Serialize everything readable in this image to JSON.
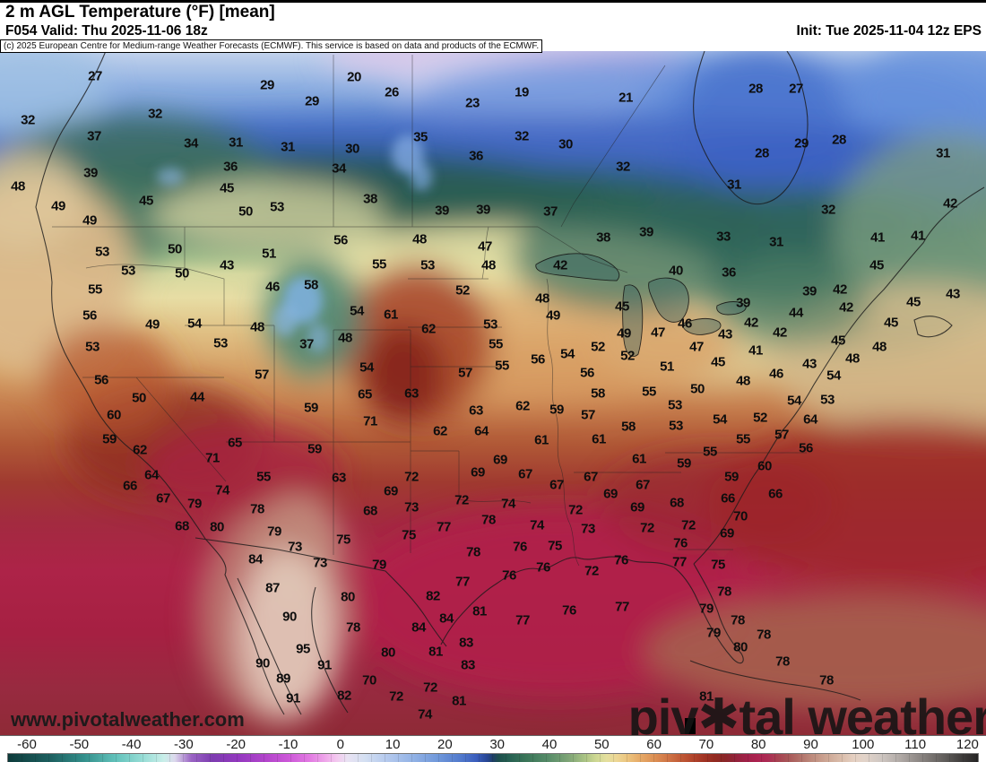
{
  "header": {
    "title": "2 m AGL Temperature (°F) [mean]",
    "valid": "F054 Valid: Thu 2025-11-06 18z",
    "init": "Init: Tue 2025-11-04 12z EPS",
    "copyright": "(c) 2025 European Centre for Medium-range Weather Forecasts (ECMWF). This service is based on data and products of the ECMWF."
  },
  "watermarks": {
    "site": "www.pivotalweather.com",
    "brand_left": "piv",
    "brand_gear": "✱",
    "brand_right": "tal weather"
  },
  "colorbar": {
    "ticks": [
      "-60",
      "-50",
      "-40",
      "-30",
      "-20",
      "-10",
      "0",
      "10",
      "20",
      "30",
      "40",
      "50",
      "60",
      "70",
      "80",
      "90",
      "100",
      "110",
      "120"
    ],
    "gradient": [
      "#0d3b3b 0%",
      "#1d6060 4.4%",
      "#338f8b 7.8%",
      "#62c2bb 11.1%",
      "#97ddd6 13.9%",
      "#c9eee9 16.1%",
      "#dcd8ec 17.2%",
      "#9a64c4 18.9%",
      "#7d3cb0 21.1%",
      "#9539c0 23.9%",
      "#b446cc 26.7%",
      "#cc58d8 28.9%",
      "#e27ae2 31.1%",
      "#efa9ea 32.8%",
      "#f3c9ef 33.9%",
      "#e9e2f3 35%",
      "#d5e0f2 36.7%",
      "#b7cbee 38.9%",
      "#93b3e6 41.7%",
      "#6f97da 44.4%",
      "#5179cc 46.7%",
      "#3a5dbc 48.3%",
      "#274694 49.4%",
      "#1f3f66 50%",
      "#1d4f4c 50.6%",
      "#266052 51.7%",
      "#397458 53.3%",
      "#558b68 55.6%",
      "#7fa577 57.8%",
      "#a8c284 59.4%",
      "#cdd792 60.6%",
      "#e4df9e 61.7%",
      "#edd694 62.8%",
      "#ecc47e 63.9%",
      "#e7ad6a 65%",
      "#dc8f54 66.7%",
      "#cd7044 68.3%",
      "#c05a36 69.4%",
      "#b2452c 70.6%",
      "#a23424 71.7%",
      "#932a20 72.8%",
      "#8a2728 73.9%",
      "#92233a 75%",
      "#a02148 76.1%",
      "#ac2250 77.2%",
      "#ac2c54 78.3%",
      "#a74352 79.4%",
      "#a95a5a 80.6%",
      "#b2726a 81.7%",
      "#bd8a7c 82.8%",
      "#cda694 84.4%",
      "#dcc0ae 86.1%",
      "#e5d0c2 87.2%",
      "#e2d3c9 88.3%",
      "#cfc7c2 90%",
      "#b5aeaa 91.7%",
      "#98928f 93.3%",
      "#7b7673 95%",
      "#5e5b59 96.7%",
      "#403e3d 98.3%",
      "#262525 100%"
    ]
  },
  "map": {
    "labels": [
      [
        27,
        106,
        82
      ],
      [
        29,
        298,
        92
      ],
      [
        29,
        348,
        110
      ],
      [
        32,
        31,
        131
      ],
      [
        32,
        173,
        124
      ],
      [
        37,
        105,
        149
      ],
      [
        34,
        213,
        157
      ],
      [
        31,
        263,
        156
      ],
      [
        31,
        321,
        161
      ],
      [
        36,
        257,
        183
      ],
      [
        39,
        101,
        190
      ],
      [
        45,
        253,
        207
      ],
      [
        48,
        20,
        205
      ],
      [
        49,
        65,
        227
      ],
      [
        45,
        163,
        221
      ],
      [
        53,
        309,
        228
      ],
      [
        50,
        274,
        233
      ],
      [
        49,
        100,
        243
      ],
      [
        20,
        395,
        83
      ],
      [
        26,
        437,
        100
      ],
      [
        23,
        527,
        112
      ],
      [
        19,
        582,
        100
      ],
      [
        21,
        698,
        106
      ],
      [
        35,
        469,
        150
      ],
      [
        32,
        582,
        149
      ],
      [
        30,
        393,
        163
      ],
      [
        30,
        631,
        158
      ],
      [
        36,
        531,
        171
      ],
      [
        32,
        695,
        183
      ],
      [
        34,
        378,
        185
      ],
      [
        38,
        413,
        219
      ],
      [
        39,
        493,
        232
      ],
      [
        39,
        539,
        231
      ],
      [
        37,
        614,
        233
      ],
      [
        39,
        721,
        256
      ],
      [
        28,
        843,
        96
      ],
      [
        27,
        888,
        96
      ],
      [
        28,
        936,
        153
      ],
      [
        29,
        894,
        157
      ],
      [
        28,
        850,
        168
      ],
      [
        31,
        1052,
        168
      ],
      [
        31,
        819,
        203
      ],
      [
        32,
        924,
        231
      ],
      [
        42,
        1060,
        224
      ],
      [
        53,
        114,
        278
      ],
      [
        50,
        195,
        275
      ],
      [
        43,
        253,
        293
      ],
      [
        51,
        300,
        280
      ],
      [
        53,
        143,
        299
      ],
      [
        50,
        203,
        302
      ],
      [
        55,
        106,
        320
      ],
      [
        46,
        304,
        317
      ],
      [
        58,
        347,
        315
      ],
      [
        56,
        100,
        349
      ],
      [
        49,
        170,
        359
      ],
      [
        54,
        217,
        358
      ],
      [
        48,
        287,
        362
      ],
      [
        53,
        246,
        380
      ],
      [
        37,
        342,
        381
      ],
      [
        53,
        103,
        384
      ],
      [
        56,
        113,
        421
      ],
      [
        57,
        292,
        415
      ],
      [
        50,
        155,
        441
      ],
      [
        44,
        220,
        440
      ],
      [
        56,
        380,
        265
      ],
      [
        48,
        468,
        264
      ],
      [
        47,
        541,
        272
      ],
      [
        38,
        673,
        262
      ],
      [
        55,
        423,
        292
      ],
      [
        53,
        477,
        293
      ],
      [
        48,
        545,
        293
      ],
      [
        42,
        625,
        293
      ],
      [
        52,
        516,
        321
      ],
      [
        48,
        605,
        330
      ],
      [
        54,
        398,
        344
      ],
      [
        61,
        436,
        348
      ],
      [
        49,
        617,
        349
      ],
      [
        45,
        694,
        339
      ],
      [
        62,
        478,
        364
      ],
      [
        53,
        547,
        359
      ],
      [
        48,
        385,
        374
      ],
      [
        49,
        696,
        369
      ],
      [
        47,
        734,
        368
      ],
      [
        55,
        553,
        381
      ],
      [
        52,
        667,
        384
      ],
      [
        52,
        700,
        394
      ],
      [
        54,
        633,
        392
      ],
      [
        54,
        409,
        407
      ],
      [
        56,
        600,
        398
      ],
      [
        55,
        560,
        405
      ],
      [
        56,
        655,
        413
      ],
      [
        57,
        519,
        413
      ],
      [
        65,
        407,
        437
      ],
      [
        63,
        459,
        436
      ],
      [
        58,
        667,
        436
      ],
      [
        55,
        724,
        434
      ],
      [
        33,
        807,
        261
      ],
      [
        31,
        866,
        267
      ],
      [
        41,
        979,
        262
      ],
      [
        41,
        1024,
        260
      ],
      [
        40,
        754,
        299
      ],
      [
        36,
        813,
        301
      ],
      [
        45,
        978,
        293
      ],
      [
        39,
        829,
        335
      ],
      [
        39,
        903,
        322
      ],
      [
        42,
        937,
        320
      ],
      [
        43,
        1063,
        325
      ],
      [
        42,
        944,
        340
      ],
      [
        45,
        1019,
        334
      ],
      [
        44,
        888,
        346
      ],
      [
        42,
        838,
        357
      ],
      [
        45,
        994,
        357
      ],
      [
        46,
        764,
        358
      ],
      [
        42,
        870,
        368
      ],
      [
        43,
        809,
        370
      ],
      [
        45,
        935,
        377
      ],
      [
        47,
        777,
        384
      ],
      [
        48,
        981,
        384
      ],
      [
        41,
        843,
        388
      ],
      [
        45,
        801,
        401
      ],
      [
        48,
        951,
        397
      ],
      [
        43,
        903,
        403
      ],
      [
        51,
        744,
        406
      ],
      [
        46,
        866,
        414
      ],
      [
        54,
        930,
        416
      ],
      [
        48,
        829,
        422
      ],
      [
        50,
        778,
        431
      ],
      [
        54,
        886,
        444
      ],
      [
        53,
        923,
        443
      ],
      [
        60,
        127,
        460
      ],
      [
        59,
        122,
        487
      ],
      [
        62,
        156,
        499
      ],
      [
        65,
        262,
        491
      ],
      [
        59,
        347,
        452
      ],
      [
        59,
        351,
        498
      ],
      [
        71,
        237,
        508
      ],
      [
        64,
        169,
        527
      ],
      [
        55,
        294,
        529
      ],
      [
        66,
        145,
        539
      ],
      [
        74,
        248,
        544
      ],
      [
        67,
        182,
        553
      ],
      [
        79,
        217,
        559
      ],
      [
        78,
        287,
        565
      ],
      [
        68,
        203,
        584
      ],
      [
        80,
        242,
        585
      ],
      [
        79,
        306,
        590
      ],
      [
        73,
        329,
        607
      ],
      [
        84,
        285,
        621
      ],
      [
        73,
        357,
        625
      ],
      [
        71,
        413,
        467
      ],
      [
        63,
        531,
        455
      ],
      [
        62,
        583,
        450
      ],
      [
        59,
        621,
        454
      ],
      [
        57,
        656,
        460
      ],
      [
        62,
        491,
        478
      ],
      [
        64,
        537,
        478
      ],
      [
        58,
        701,
        473
      ],
      [
        61,
        604,
        488
      ],
      [
        61,
        668,
        487
      ],
      [
        61,
        713,
        509
      ],
      [
        69,
        558,
        510
      ],
      [
        69,
        533,
        524
      ],
      [
        67,
        586,
        526
      ],
      [
        67,
        621,
        538
      ],
      [
        67,
        659,
        529
      ],
      [
        67,
        717,
        538
      ],
      [
        63,
        378,
        530
      ],
      [
        72,
        459,
        529
      ],
      [
        69,
        436,
        545
      ],
      [
        69,
        681,
        548
      ],
      [
        68,
        413,
        567
      ],
      [
        73,
        459,
        563
      ],
      [
        72,
        515,
        555
      ],
      [
        74,
        567,
        559
      ],
      [
        72,
        642,
        566
      ],
      [
        69,
        711,
        563
      ],
      [
        78,
        545,
        577
      ],
      [
        77,
        495,
        585
      ],
      [
        75,
        456,
        594
      ],
      [
        74,
        599,
        583
      ],
      [
        73,
        656,
        587
      ],
      [
        72,
        722,
        586
      ],
      [
        75,
        383,
        599
      ],
      [
        78,
        528,
        613
      ],
      [
        76,
        580,
        607
      ],
      [
        75,
        619,
        606
      ],
      [
        76,
        693,
        622
      ],
      [
        79,
        423,
        627
      ],
      [
        76,
        606,
        630
      ],
      [
        72,
        660,
        634
      ],
      [
        53,
        753,
        449
      ],
      [
        54,
        803,
        465
      ],
      [
        52,
        848,
        463
      ],
      [
        64,
        904,
        465
      ],
      [
        53,
        754,
        472
      ],
      [
        57,
        872,
        482
      ],
      [
        55,
        829,
        487
      ],
      [
        55,
        792,
        501
      ],
      [
        56,
        899,
        497
      ],
      [
        59,
        763,
        514
      ],
      [
        60,
        853,
        517
      ],
      [
        59,
        816,
        529
      ],
      [
        66,
        812,
        553
      ],
      [
        66,
        865,
        548
      ],
      [
        68,
        755,
        558
      ],
      [
        70,
        826,
        573
      ],
      [
        72,
        768,
        583
      ],
      [
        69,
        811,
        592
      ],
      [
        76,
        759,
        603
      ],
      [
        77,
        758,
        624
      ],
      [
        75,
        801,
        627
      ],
      [
        87,
        304,
        653
      ],
      [
        90,
        323,
        685
      ],
      [
        95,
        338,
        721
      ],
      [
        90,
        293,
        737
      ],
      [
        89,
        316,
        754
      ],
      [
        91,
        362,
        739
      ],
      [
        91,
        327,
        776
      ],
      [
        77,
        516,
        646
      ],
      [
        76,
        568,
        639
      ],
      [
        80,
        388,
        663
      ],
      [
        82,
        483,
        662
      ],
      [
        81,
        535,
        679
      ],
      [
        84,
        498,
        687
      ],
      [
        84,
        467,
        697
      ],
      [
        78,
        394,
        697
      ],
      [
        77,
        583,
        689
      ],
      [
        76,
        635,
        678
      ],
      [
        77,
        694,
        674
      ],
      [
        83,
        520,
        714
      ],
      [
        80,
        433,
        725
      ],
      [
        81,
        486,
        724
      ],
      [
        83,
        522,
        739
      ],
      [
        70,
        412,
        756
      ],
      [
        82,
        384,
        773
      ],
      [
        72,
        442,
        774
      ],
      [
        72,
        480,
        764
      ],
      [
        81,
        512,
        779
      ],
      [
        74,
        474,
        794
      ],
      [
        78,
        808,
        657
      ],
      [
        79,
        788,
        676
      ],
      [
        78,
        823,
        689
      ],
      [
        79,
        796,
        703
      ],
      [
        78,
        852,
        705
      ],
      [
        80,
        826,
        719
      ],
      [
        78,
        873,
        735
      ],
      [
        78,
        922,
        756
      ],
      [
        81,
        788,
        774
      ]
    ]
  }
}
